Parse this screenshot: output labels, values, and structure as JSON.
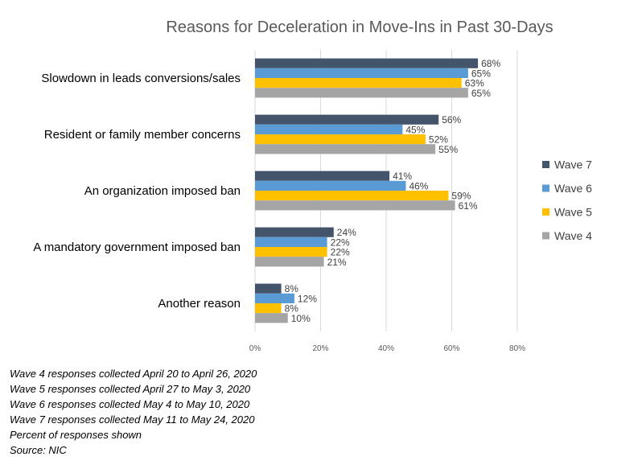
{
  "chart_data": {
    "type": "bar",
    "orientation": "horizontal",
    "title": "Reasons for Deceleration in Move-Ins in Past 30-Days",
    "categories": [
      "Slowdown in leads conversions/sales",
      "Resident or family member concerns",
      "An organization imposed ban",
      "A mandatory government imposed ban",
      "Another reason"
    ],
    "series": [
      {
        "name": "Wave 7",
        "color": "#44546A",
        "values": [
          68,
          56,
          41,
          24,
          8
        ]
      },
      {
        "name": "Wave 6",
        "color": "#5B9BD5",
        "values": [
          65,
          45,
          46,
          22,
          12
        ]
      },
      {
        "name": "Wave 5",
        "color": "#FFC000",
        "values": [
          63,
          52,
          59,
          22,
          8
        ]
      },
      {
        "name": "Wave 4",
        "color": "#A5A5A5",
        "values": [
          65,
          55,
          61,
          21,
          10
        ]
      }
    ],
    "xlim": [
      0,
      80
    ],
    "x_ticks": [
      0,
      20,
      40,
      60,
      80
    ],
    "tick_format": "{v}%",
    "label_format": "{v}%",
    "grid": true,
    "legend_position": "right"
  },
  "notes": [
    "Wave 4 responses collected April 20 to April 26, 2020",
    "Wave 5 responses collected April 27 to May 3, 2020",
    "Wave 6 responses collected May 4 to May 10, 2020",
    "Wave 7 responses collected May 11 to May 24, 2020",
    "Percent of responses shown",
    "Source: NIC"
  ]
}
